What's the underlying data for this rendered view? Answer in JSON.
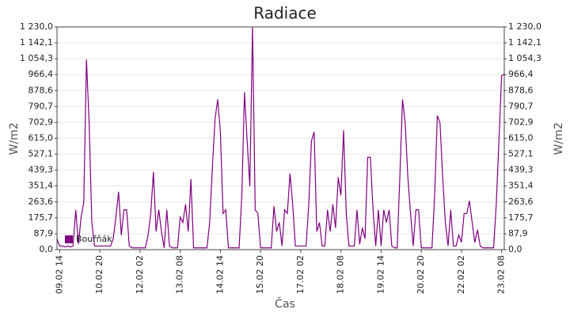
{
  "chart_data": {
    "type": "line",
    "title": "Radiace",
    "x_label": "Čas",
    "y_label": "W/m2",
    "y2_label": "W/m2",
    "categories": [
      null,
      "09.02 14",
      null,
      null,
      null,
      null,
      null,
      null,
      null,
      null,
      null,
      null,
      null,
      null,
      null,
      null,
      "10.02 20",
      null,
      null,
      null,
      null,
      null,
      null,
      null,
      null,
      null,
      null,
      null,
      null,
      null,
      null,
      "12.02 02",
      null,
      null,
      null,
      null,
      null,
      null,
      null,
      null,
      null,
      null,
      null,
      null,
      null,
      null,
      "13.02 08",
      null,
      null,
      null,
      null,
      null,
      null,
      null,
      null,
      null,
      null,
      null,
      null,
      null,
      null,
      "14.02 14",
      null,
      null,
      null,
      null,
      null,
      null,
      null,
      null,
      null,
      null,
      null,
      null,
      null,
      null,
      "15.02 20",
      null,
      null,
      null,
      null,
      null,
      null,
      null,
      null,
      null,
      null,
      null,
      null,
      null,
      null,
      "17.02 02",
      null,
      null,
      null,
      null,
      null,
      null,
      null,
      null,
      null,
      null,
      null,
      null,
      null,
      null,
      "18.02 08",
      null,
      null,
      null,
      null,
      null,
      null,
      null,
      null,
      null,
      null,
      null,
      null,
      null,
      null,
      "19.02 14",
      null,
      null,
      null,
      null,
      null,
      null,
      null,
      null,
      null,
      null,
      null,
      null,
      null,
      null,
      "20.02 20",
      null,
      null,
      null,
      null,
      null,
      null,
      null,
      null,
      null,
      null,
      null,
      null,
      null,
      null,
      "22.02 02",
      null,
      null,
      null,
      null,
      null,
      null,
      null,
      null,
      null,
      null,
      null,
      null,
      null,
      null,
      "23.02 08",
      null
    ],
    "series": [
      {
        "name": "Bouřňák",
        "color": "#800080",
        "values": [
          60,
          20,
          20,
          15,
          20,
          15,
          20,
          220,
          30,
          180,
          260,
          1050,
          700,
          150,
          20,
          20,
          20,
          20,
          20,
          20,
          20,
          60,
          180,
          320,
          80,
          220,
          220,
          20,
          10,
          10,
          10,
          10,
          10,
          10,
          80,
          200,
          430,
          100,
          220,
          100,
          10,
          220,
          20,
          10,
          10,
          10,
          180,
          150,
          250,
          100,
          390,
          10,
          10,
          10,
          10,
          10,
          10,
          150,
          450,
          720,
          830,
          650,
          200,
          220,
          10,
          10,
          10,
          10,
          10,
          300,
          870,
          600,
          350,
          1230,
          220,
          200,
          10,
          10,
          10,
          10,
          10,
          240,
          100,
          150,
          20,
          220,
          200,
          420,
          250,
          20,
          20,
          20,
          20,
          20,
          250,
          600,
          650,
          100,
          150,
          20,
          20,
          220,
          100,
          250,
          120,
          400,
          300,
          660,
          200,
          20,
          20,
          20,
          220,
          30,
          120,
          60,
          510,
          510,
          220,
          20,
          220,
          20,
          220,
          150,
          220,
          20,
          10,
          10,
          400,
          830,
          700,
          400,
          200,
          20,
          220,
          220,
          10,
          10,
          10,
          10,
          10,
          300,
          740,
          700,
          400,
          150,
          20,
          220,
          20,
          20,
          80,
          40,
          200,
          200,
          270,
          150,
          40,
          110,
          20,
          10,
          10,
          10,
          10,
          10,
          250,
          600,
          960,
          970
        ]
      }
    ],
    "ylim": [
      0,
      1230
    ],
    "yticks": [
      {
        "value": 0,
        "label": "0,0"
      },
      {
        "value": 87.9,
        "label": "87,9"
      },
      {
        "value": 175.7,
        "label": "175,7"
      },
      {
        "value": 263.6,
        "label": "263,6"
      },
      {
        "value": 351.4,
        "label": "351,4"
      },
      {
        "value": 439.3,
        "label": "439,3"
      },
      {
        "value": 527.1,
        "label": "527,1"
      },
      {
        "value": 615.0,
        "label": "615,0"
      },
      {
        "value": 702.9,
        "label": "702,9"
      },
      {
        "value": 790.7,
        "label": "790,7"
      },
      {
        "value": 878.6,
        "label": "878,6"
      },
      {
        "value": 966.4,
        "label": "966,4"
      },
      {
        "value": 1054.3,
        "label": "1 054,3"
      },
      {
        "value": 1142.1,
        "label": "1 142,1"
      },
      {
        "value": 1230.0,
        "label": "1 230,0"
      }
    ],
    "y2lim": [
      0,
      1230
    ],
    "y2ticks": [
      {
        "value": 0,
        "label": "0,0"
      },
      {
        "value": 87.9,
        "label": "87,9"
      },
      {
        "value": 175.7,
        "label": "175,7"
      },
      {
        "value": 263.6,
        "label": "263,6"
      },
      {
        "value": 351.4,
        "label": "351,4"
      },
      {
        "value": 439.3,
        "label": "439,3"
      },
      {
        "value": 527.1,
        "label": "527,1"
      },
      {
        "value": 615.0,
        "label": "615,0"
      },
      {
        "value": 702.9,
        "label": "702,9"
      },
      {
        "value": 790.7,
        "label": "790,7"
      },
      {
        "value": 878.6,
        "label": "878,6"
      },
      {
        "value": 966.4,
        "label": "966,4"
      },
      {
        "value": 1054.3,
        "label": "1 054,3"
      },
      {
        "value": 1142.1,
        "label": "1 142,1"
      },
      {
        "value": 1230.0,
        "label": "1 230,0"
      }
    ],
    "grid": true,
    "legend": "lower left"
  }
}
